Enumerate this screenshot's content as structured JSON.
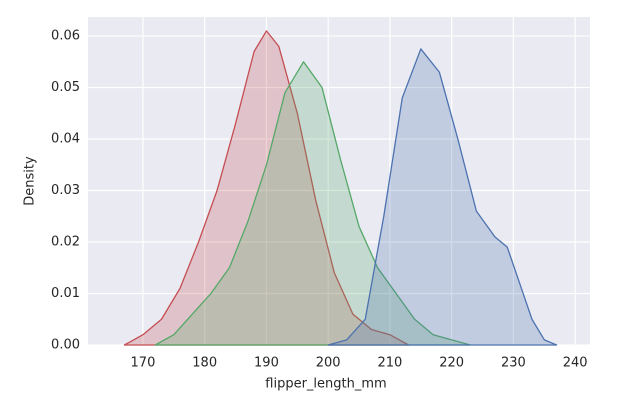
{
  "chart_data": {
    "type": "area",
    "xlabel": "flipper_length_mm",
    "ylabel": "Density",
    "xlim": [
      161.1,
      242.4
    ],
    "ylim": [
      0,
      0.0637
    ],
    "xticks": [
      170,
      180,
      190,
      200,
      210,
      220,
      230,
      240
    ],
    "yticks": [
      {
        "value": 0,
        "label": "0.00"
      },
      {
        "value": 0.01,
        "label": "0.01"
      },
      {
        "value": 0.02,
        "label": "0.02"
      },
      {
        "value": 0.03,
        "label": "0.03"
      },
      {
        "value": 0.04,
        "label": "0.04"
      },
      {
        "value": 0.05,
        "label": "0.05"
      },
      {
        "value": 0.06,
        "label": "0.06"
      }
    ],
    "grid": true,
    "series": [
      {
        "color": "#c44e52",
        "x": [
          167,
          170,
          173,
          176,
          179,
          182,
          185,
          188,
          190,
          192,
          195,
          198,
          201,
          204,
          207,
          210,
          213
        ],
        "values": [
          0,
          0.002,
          0.005,
          0.011,
          0.02,
          0.03,
          0.043,
          0.057,
          0.061,
          0.058,
          0.045,
          0.028,
          0.014,
          0.006,
          0.003,
          0.002,
          0
        ]
      },
      {
        "color": "#55a868",
        "x": [
          172,
          175,
          178,
          181,
          184,
          187,
          190,
          193,
          196,
          199,
          202,
          205,
          208,
          211,
          214,
          217,
          220,
          223
        ],
        "values": [
          0,
          0.002,
          0.006,
          0.01,
          0.015,
          0.024,
          0.035,
          0.049,
          0.055,
          0.05,
          0.036,
          0.023,
          0.015,
          0.01,
          0.005,
          0.002,
          0.001,
          0
        ]
      },
      {
        "color": "#4c72b0",
        "x": [
          200,
          203,
          206,
          209,
          212,
          215,
          218,
          221,
          224,
          227,
          229,
          231,
          233,
          235,
          237
        ],
        "values": [
          0,
          0.001,
          0.005,
          0.025,
          0.048,
          0.0575,
          0.053,
          0.04,
          0.026,
          0.021,
          0.019,
          0.012,
          0.005,
          0.001,
          0
        ]
      }
    ]
  }
}
